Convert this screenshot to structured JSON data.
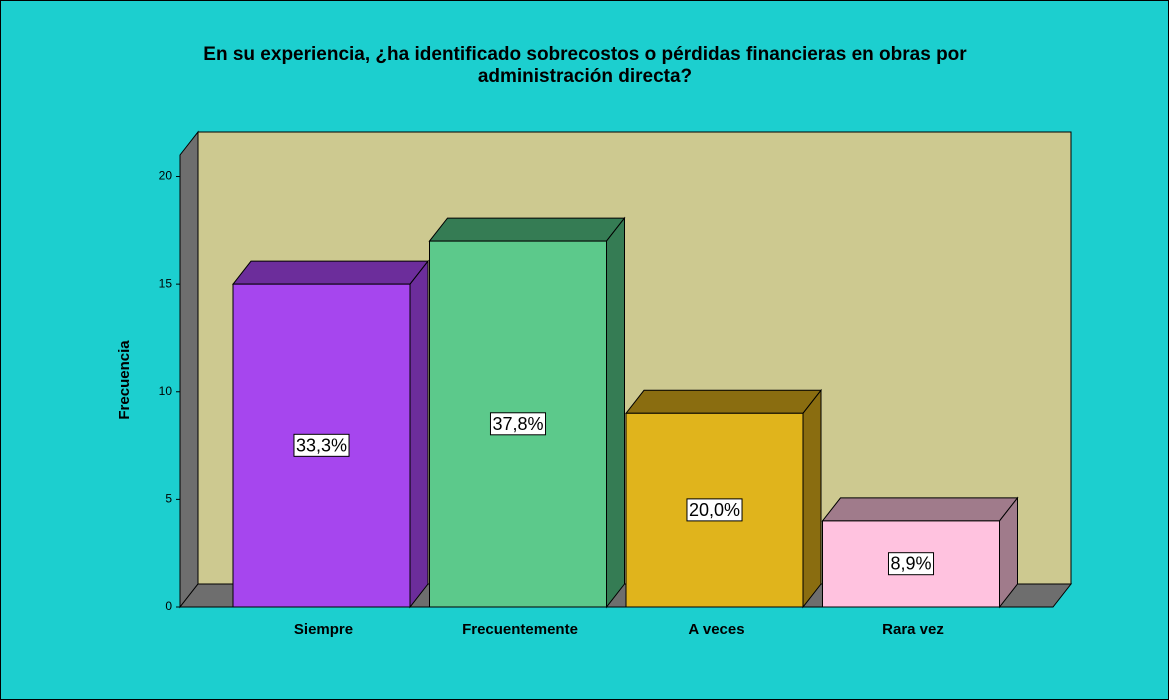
{
  "chart_data": {
    "type": "bar3d",
    "title": "En su experiencia, ¿ha identificado sobrecostos o pérdidas financieras en obras por administración directa?",
    "ylabel": "Frecuencia",
    "categories": [
      "Siempre",
      "Frecuentemente",
      "A veces",
      "Rara vez"
    ],
    "values": [
      15,
      17,
      9,
      4
    ],
    "percentages": [
      33.3,
      37.8,
      20.0,
      8.9
    ],
    "percentage_labels": [
      "33,3%",
      "37,8%",
      "20,0%",
      "8,9%"
    ],
    "colors": [
      "#a646ee",
      "#5cc98b",
      "#e0b41c",
      "#ffc2df"
    ],
    "side_colors": [
      "#6c2d9b",
      "#357c54",
      "#8a6d10",
      "#a07b8b"
    ],
    "ylim": [
      0,
      21
    ],
    "yticks": [
      0,
      5,
      10,
      15,
      20
    ]
  }
}
